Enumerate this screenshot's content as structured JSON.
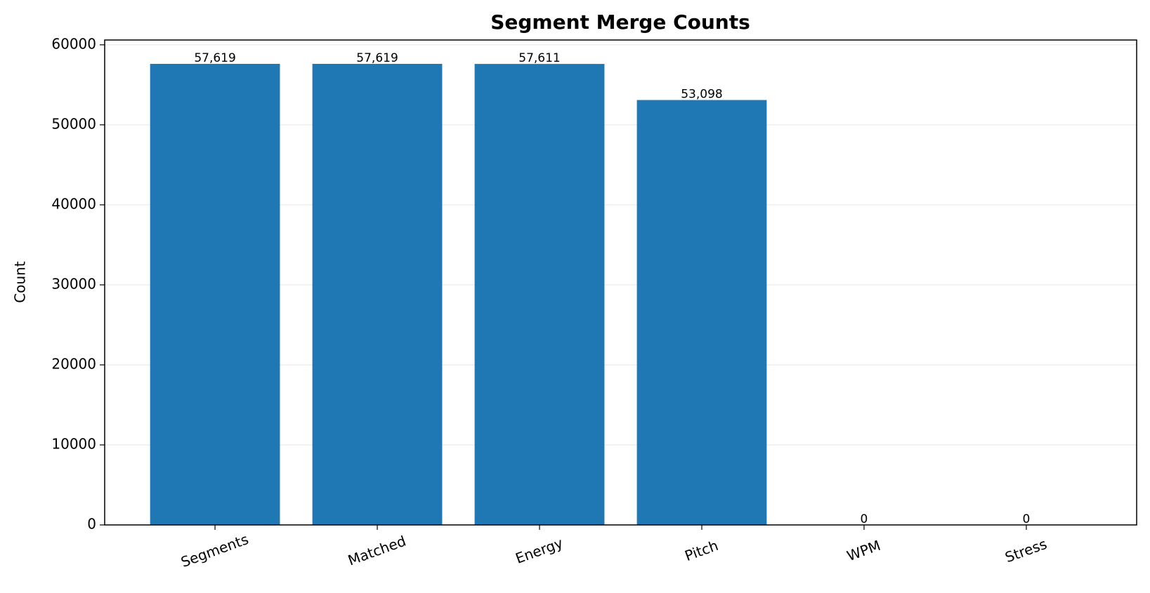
{
  "chart_data": {
    "type": "bar",
    "title": "Segment Merge Counts",
    "y_label": "Count",
    "categories": [
      "Segments",
      "Matched",
      "Energy",
      "Pitch",
      "WPM",
      "Stress"
    ],
    "values": [
      57619,
      57619,
      57611,
      53098,
      0,
      0
    ],
    "value_labels": [
      "57,619",
      "57,619",
      "57,611",
      "53,098",
      "0",
      "0"
    ],
    "color": "#1f77b4",
    "ylim": [
      0,
      60600
    ],
    "yticks": [
      0,
      10000,
      20000,
      30000,
      40000,
      50000,
      60000
    ],
    "grid": true
  }
}
